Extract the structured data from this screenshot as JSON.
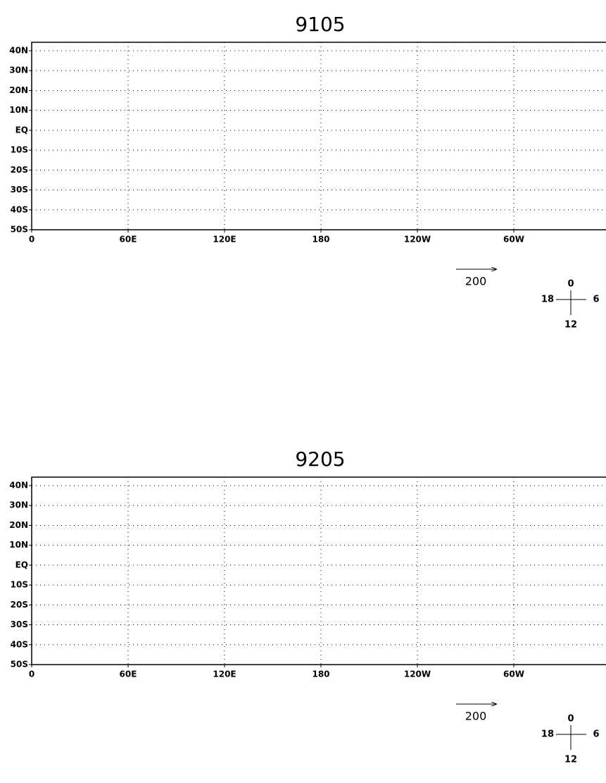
{
  "panels": [
    {
      "title": "9105",
      "lat_labels": [
        "40N",
        "30N",
        "20N",
        "10N",
        "EQ",
        "10S",
        "20S",
        "30S",
        "40S",
        "50S"
      ],
      "lon_labels": [
        "0",
        "60E",
        "120E",
        "180",
        "120W",
        "60W"
      ],
      "reference_vector_label": "200",
      "clock_labels": {
        "top": "0",
        "right": "6",
        "bottom": "12",
        "left": "18"
      }
    },
    {
      "title": "9205",
      "lat_labels": [
        "40N",
        "30N",
        "20N",
        "10N",
        "EQ",
        "10S",
        "20S",
        "30S",
        "40S",
        "50S"
      ],
      "lon_labels": [
        "0",
        "60E",
        "120E",
        "180",
        "120W",
        "60W"
      ],
      "reference_vector_label": "200",
      "clock_labels": {
        "top": "0",
        "right": "6",
        "bottom": "12",
        "left": "18"
      }
    }
  ]
}
